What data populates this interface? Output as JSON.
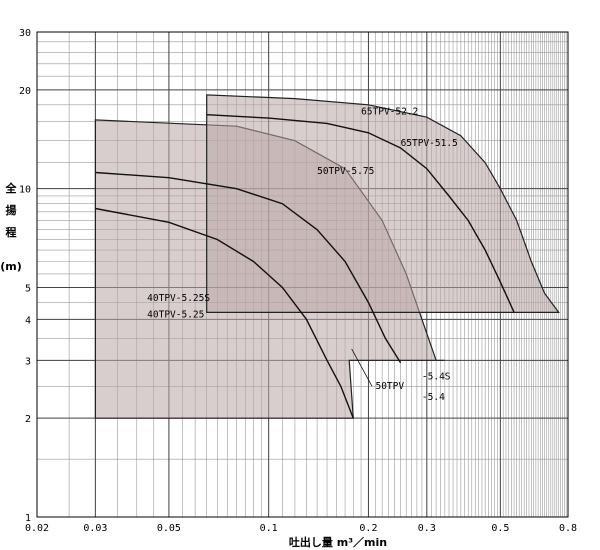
{
  "chart_data": {
    "type": "area",
    "title": "",
    "xlabel": "吐出し量 m³／min",
    "ylabel_chars": [
      "全",
      "揚",
      "程"
    ],
    "ylabel_unit": "(m)",
    "x_scale": "log",
    "y_scale": "log",
    "xlim": [
      0.02,
      0.8
    ],
    "ylim": [
      1,
      30
    ],
    "grid": true,
    "x_ticks": [
      {
        "value": 0.02,
        "label": "0.02"
      },
      {
        "value": 0.03,
        "label": "0.03"
      },
      {
        "value": 0.05,
        "label": "0.05"
      },
      {
        "value": 0.1,
        "label": "0.1"
      },
      {
        "value": 0.2,
        "label": "0.2"
      },
      {
        "value": 0.3,
        "label": "0.3"
      },
      {
        "value": 0.5,
        "label": "0.5"
      },
      {
        "value": 0.8,
        "label": "0.8"
      }
    ],
    "y_ticks": [
      {
        "value": 1,
        "label": "1"
      },
      {
        "value": 2,
        "label": "2"
      },
      {
        "value": 3,
        "label": "3"
      },
      {
        "value": 4,
        "label": "4"
      },
      {
        "value": 5,
        "label": "5"
      },
      {
        "value": 10,
        "label": "10"
      },
      {
        "value": 20,
        "label": "20"
      },
      {
        "value": 30,
        "label": "30"
      }
    ],
    "regions": [
      {
        "name": "40TPV",
        "outline": [
          [
            0.03,
            2
          ],
          [
            0.03,
            16.2
          ],
          [
            0.08,
            15.5
          ],
          [
            0.12,
            14.0
          ],
          [
            0.17,
            11.5
          ],
          [
            0.22,
            8.0
          ],
          [
            0.26,
            5.5
          ],
          [
            0.295,
            3.8
          ],
          [
            0.32,
            3.0
          ],
          [
            0.34,
            3.0
          ],
          [
            0.34,
            3.0
          ],
          [
            0.175,
            3.0
          ],
          [
            0.18,
            2.0
          ]
        ]
      },
      {
        "name": "65TPV",
        "outline": [
          [
            0.065,
            4.2
          ],
          [
            0.065,
            19.3
          ],
          [
            0.12,
            18.8
          ],
          [
            0.2,
            18.0
          ],
          [
            0.3,
            16.5
          ],
          [
            0.38,
            14.5
          ],
          [
            0.45,
            12.0
          ],
          [
            0.5,
            10.0
          ],
          [
            0.56,
            8.0
          ],
          [
            0.62,
            6.0
          ],
          [
            0.68,
            4.8
          ],
          [
            0.75,
            4.2
          ]
        ]
      }
    ],
    "series": [
      {
        "name": "40TPV-5.25",
        "points": [
          [
            0.03,
            8.7
          ],
          [
            0.05,
            7.9
          ],
          [
            0.07,
            7.0
          ],
          [
            0.09,
            6.0
          ],
          [
            0.11,
            5.0
          ],
          [
            0.13,
            4.0
          ],
          [
            0.15,
            3.0
          ],
          [
            0.165,
            2.5
          ],
          [
            0.18,
            2.0
          ]
        ]
      },
      {
        "name": "50TPV-5.75",
        "points": [
          [
            0.03,
            11.2
          ],
          [
            0.05,
            10.8
          ],
          [
            0.08,
            10.0
          ],
          [
            0.11,
            9.0
          ],
          [
            0.14,
            7.5
          ],
          [
            0.17,
            6.0
          ],
          [
            0.2,
            4.5
          ],
          [
            0.225,
            3.5
          ],
          [
            0.25,
            2.95
          ]
        ]
      },
      {
        "name": "65TPV-51.5",
        "points": [
          [
            0.065,
            16.8
          ],
          [
            0.1,
            16.4
          ],
          [
            0.15,
            15.8
          ],
          [
            0.2,
            14.8
          ],
          [
            0.25,
            13.3
          ],
          [
            0.3,
            11.5
          ],
          [
            0.35,
            9.5
          ],
          [
            0.4,
            8.0
          ],
          [
            0.45,
            6.5
          ],
          [
            0.5,
            5.2
          ],
          [
            0.55,
            4.2
          ]
        ]
      }
    ],
    "annotations": [
      {
        "text": "65TPV-52.2",
        "x": 0.19,
        "y": 16.8
      },
      {
        "text": "65TPV-51.5",
        "x": 0.25,
        "y": 13.5
      },
      {
        "text": "50TPV-5.75",
        "x": 0.14,
        "y": 11.1
      },
      {
        "text": "40TPV-5.25S",
        "x": 0.043,
        "y": 4.55
      },
      {
        "text": "40TPV-5.25",
        "x": 0.043,
        "y": 4.05
      },
      {
        "text": "-5.4S",
        "x": 0.29,
        "y": 2.62
      },
      {
        "text": "50TPV",
        "x": 0.21,
        "y": 2.45
      },
      {
        "text": "-5.4",
        "x": 0.29,
        "y": 2.27
      }
    ]
  }
}
